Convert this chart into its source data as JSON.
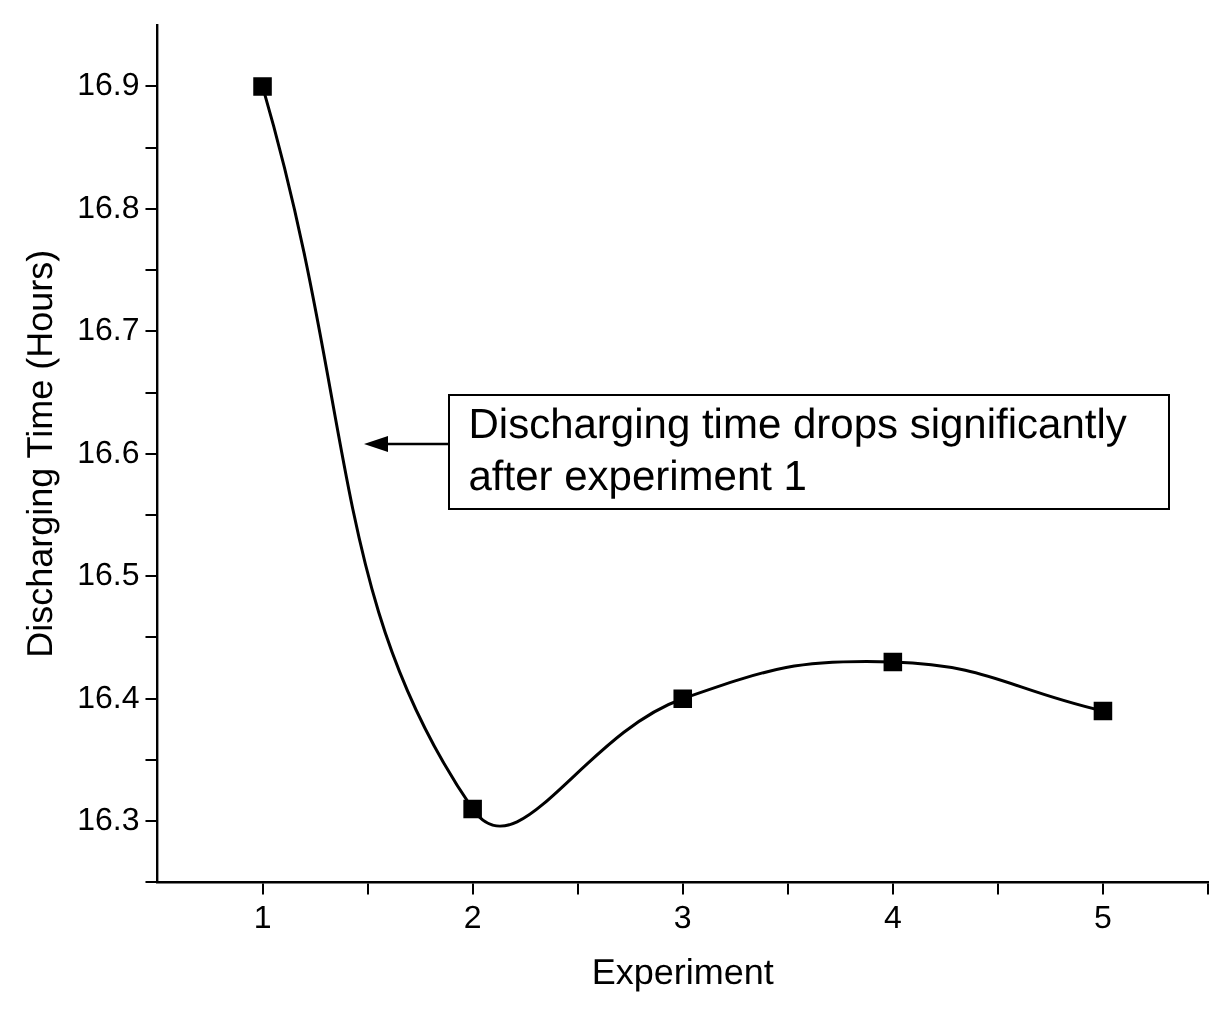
{
  "chart_data": {
    "type": "line",
    "xlabel": "Experiment",
    "ylabel": "Discharging Time (Hours)",
    "x": [
      1,
      2,
      3,
      4,
      5
    ],
    "series": [
      {
        "color": "#000000",
        "values": [
          16.9,
          16.31,
          16.4,
          16.43,
          16.39
        ]
      }
    ],
    "xlim": [
      0.5,
      5.5
    ],
    "xticks": [
      1,
      {
        "value": 1.5,
        "label": null
      },
      2,
      {
        "value": 2.5,
        "label": null
      },
      3,
      {
        "value": 3.5,
        "label": null
      },
      4,
      {
        "value": 4.5,
        "label": null
      },
      5,
      {
        "value": 5.5,
        "label": null
      }
    ],
    "ylim": [
      16.25,
      16.95
    ],
    "yticks": [
      {
        "value": 16.25,
        "label": null
      },
      16.3,
      {
        "value": 16.35,
        "label": null
      },
      16.4,
      {
        "value": 16.45,
        "label": null
      },
      16.5,
      {
        "value": 16.55,
        "label": null
      },
      16.6,
      {
        "value": 16.65,
        "label": null
      },
      16.7,
      {
        "value": 16.75,
        "label": null
      },
      16.8,
      {
        "value": 16.85,
        "label": null
      },
      16.9
    ],
    "grid": false,
    "legend": false,
    "marker": "square",
    "line_style": "solid",
    "annotations": [
      "Discharging time drops significantly after experiment 1"
    ]
  }
}
